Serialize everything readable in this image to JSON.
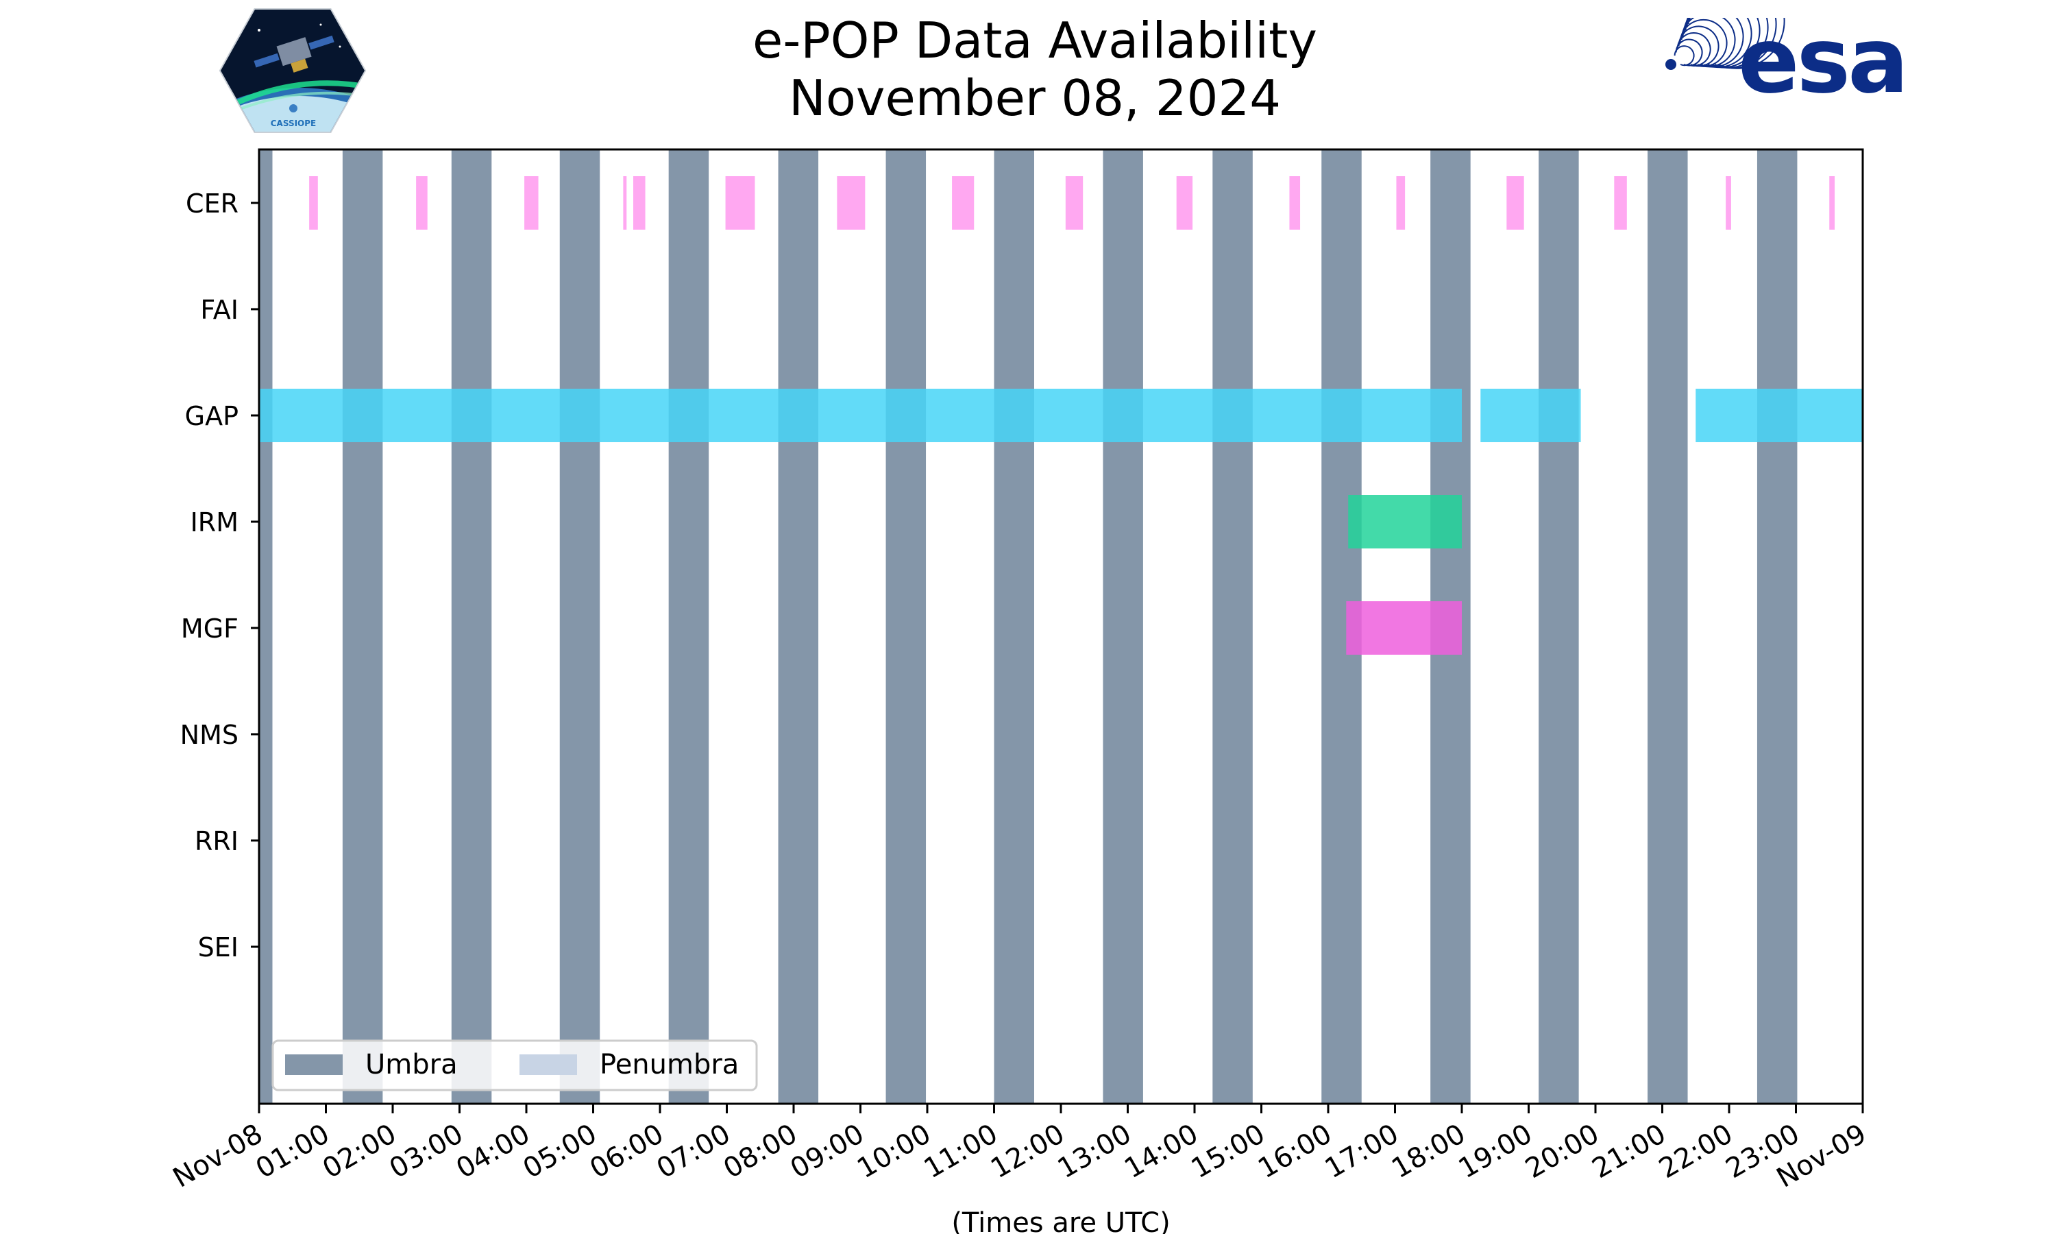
{
  "logos": {
    "cassiope_text": "CASSIOPE",
    "esa_text": "esa",
    "esa_color": "#0c2d87"
  },
  "chart_data": {
    "type": "timeline",
    "title": "e-POP Data Availability",
    "subtitle": "November 08, 2024",
    "xlabel": "(Times are UTC)",
    "x_unit": "hours since 2024-11-08 00:00 UTC",
    "xlim": [
      0,
      24
    ],
    "tick_labels": [
      "Nov-08",
      "01:00",
      "02:00",
      "03:00",
      "04:00",
      "05:00",
      "06:00",
      "07:00",
      "08:00",
      "09:00",
      "10:00",
      "11:00",
      "12:00",
      "13:00",
      "14:00",
      "15:00",
      "16:00",
      "17:00",
      "18:00",
      "19:00",
      "20:00",
      "21:00",
      "22:00",
      "23:00",
      "Nov-09"
    ],
    "rows": [
      "CER",
      "FAI",
      "GAP",
      "IRM",
      "MGF",
      "NMS",
      "RRI",
      "SEI"
    ],
    "umbra": [
      [
        0,
        0.2
      ],
      [
        1.25,
        1.85
      ],
      [
        2.88,
        3.48
      ],
      [
        4.5,
        5.1
      ],
      [
        6.13,
        6.73
      ],
      [
        7.77,
        8.37
      ],
      [
        9.38,
        9.98
      ],
      [
        11.0,
        11.6
      ],
      [
        12.63,
        13.23
      ],
      [
        14.27,
        14.87
      ],
      [
        15.9,
        16.5
      ],
      [
        17.53,
        18.13
      ],
      [
        19.15,
        19.75
      ],
      [
        20.78,
        21.38
      ],
      [
        22.42,
        23.02
      ]
    ],
    "series": [
      {
        "name": "CER",
        "color": "#ff99ee",
        "intervals": [
          [
            0.75,
            0.88
          ],
          [
            2.35,
            2.52
          ],
          [
            3.97,
            4.18
          ],
          [
            5.45,
            5.5
          ],
          [
            5.6,
            5.78
          ],
          [
            6.98,
            7.42
          ],
          [
            8.65,
            9.07
          ],
          [
            10.37,
            10.7
          ],
          [
            12.07,
            12.33
          ],
          [
            13.73,
            13.97
          ],
          [
            15.42,
            15.58
          ],
          [
            17.02,
            17.15
          ],
          [
            18.67,
            18.93
          ],
          [
            20.28,
            20.47
          ],
          [
            21.95,
            22.03
          ],
          [
            23.5,
            23.58
          ]
        ]
      },
      {
        "name": "FAI",
        "color": "#888888",
        "intervals": []
      },
      {
        "name": "GAP",
        "color": "#47d5f7",
        "intervals": [
          [
            0,
            18.0
          ],
          [
            18.28,
            19.78
          ],
          [
            21.5,
            24
          ]
        ]
      },
      {
        "name": "IRM",
        "color": "#22d39a",
        "intervals": [
          [
            16.3,
            18.0
          ]
        ]
      },
      {
        "name": "MGF",
        "color": "#ee5fdd",
        "intervals": [
          [
            16.27,
            18.0
          ]
        ]
      },
      {
        "name": "NMS",
        "color": "#888888",
        "intervals": []
      },
      {
        "name": "RRI",
        "color": "#888888",
        "intervals": []
      },
      {
        "name": "SEI",
        "color": "#888888",
        "intervals": []
      }
    ],
    "legend": {
      "location": "lower-left",
      "items": [
        {
          "label": "Umbra",
          "color": "#8496a9"
        },
        {
          "label": "Penumbra",
          "color": "#c8d4e5"
        }
      ]
    }
  }
}
